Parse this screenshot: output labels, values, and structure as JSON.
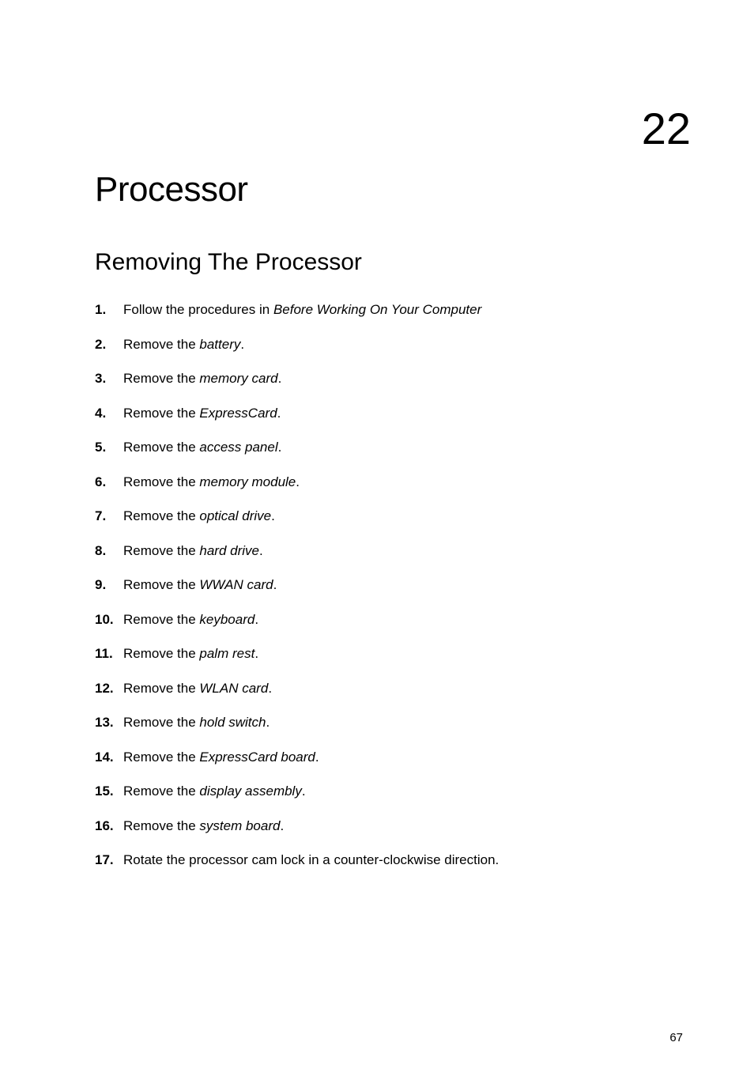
{
  "chapter": {
    "number": "22",
    "title": "Processor"
  },
  "section": {
    "title": "Removing The Processor"
  },
  "steps": [
    {
      "num": "1.",
      "prefix": "Follow the procedures in ",
      "italic": "Before Working On Your Computer",
      "suffix": ""
    },
    {
      "num": "2.",
      "prefix": "Remove the ",
      "italic": "battery",
      "suffix": "."
    },
    {
      "num": "3.",
      "prefix": "Remove the ",
      "italic": "memory card",
      "suffix": "."
    },
    {
      "num": "4.",
      "prefix": "Remove the ",
      "italic": "ExpressCard",
      "suffix": "."
    },
    {
      "num": "5.",
      "prefix": "Remove the ",
      "italic": "access panel",
      "suffix": "."
    },
    {
      "num": "6.",
      "prefix": "Remove the ",
      "italic": "memory module",
      "suffix": "."
    },
    {
      "num": "7.",
      "prefix": "Remove the ",
      "italic": "optical drive",
      "suffix": "."
    },
    {
      "num": "8.",
      "prefix": "Remove the ",
      "italic": "hard drive",
      "suffix": "."
    },
    {
      "num": "9.",
      "prefix": "Remove the ",
      "italic": "WWAN card",
      "suffix": "."
    },
    {
      "num": "10.",
      "prefix": "Remove the ",
      "italic": "keyboard",
      "suffix": "."
    },
    {
      "num": "11.",
      "prefix": "Remove the ",
      "italic": "palm rest",
      "suffix": "."
    },
    {
      "num": "12.",
      "prefix": "Remove the ",
      "italic": "WLAN card",
      "suffix": "."
    },
    {
      "num": "13.",
      "prefix": "Remove the ",
      "italic": "hold switch",
      "suffix": "."
    },
    {
      "num": "14.",
      "prefix": "Remove the ",
      "italic": "ExpressCard board",
      "suffix": "."
    },
    {
      "num": "15.",
      "prefix": "Remove the ",
      "italic": "display assembly",
      "suffix": "."
    },
    {
      "num": "16.",
      "prefix": "Remove the ",
      "italic": "system board",
      "suffix": "."
    },
    {
      "num": "17.",
      "prefix": "Rotate the processor cam lock in a counter-clockwise direction.",
      "italic": "",
      "suffix": ""
    }
  ],
  "page_number": "67",
  "colors": {
    "text": "#000000",
    "background": "#ffffff"
  },
  "typography": {
    "chapter_number_fontsize": 56,
    "chapter_title_fontsize": 44,
    "section_title_fontsize": 30,
    "body_fontsize": 17,
    "page_number_fontsize": 15
  }
}
